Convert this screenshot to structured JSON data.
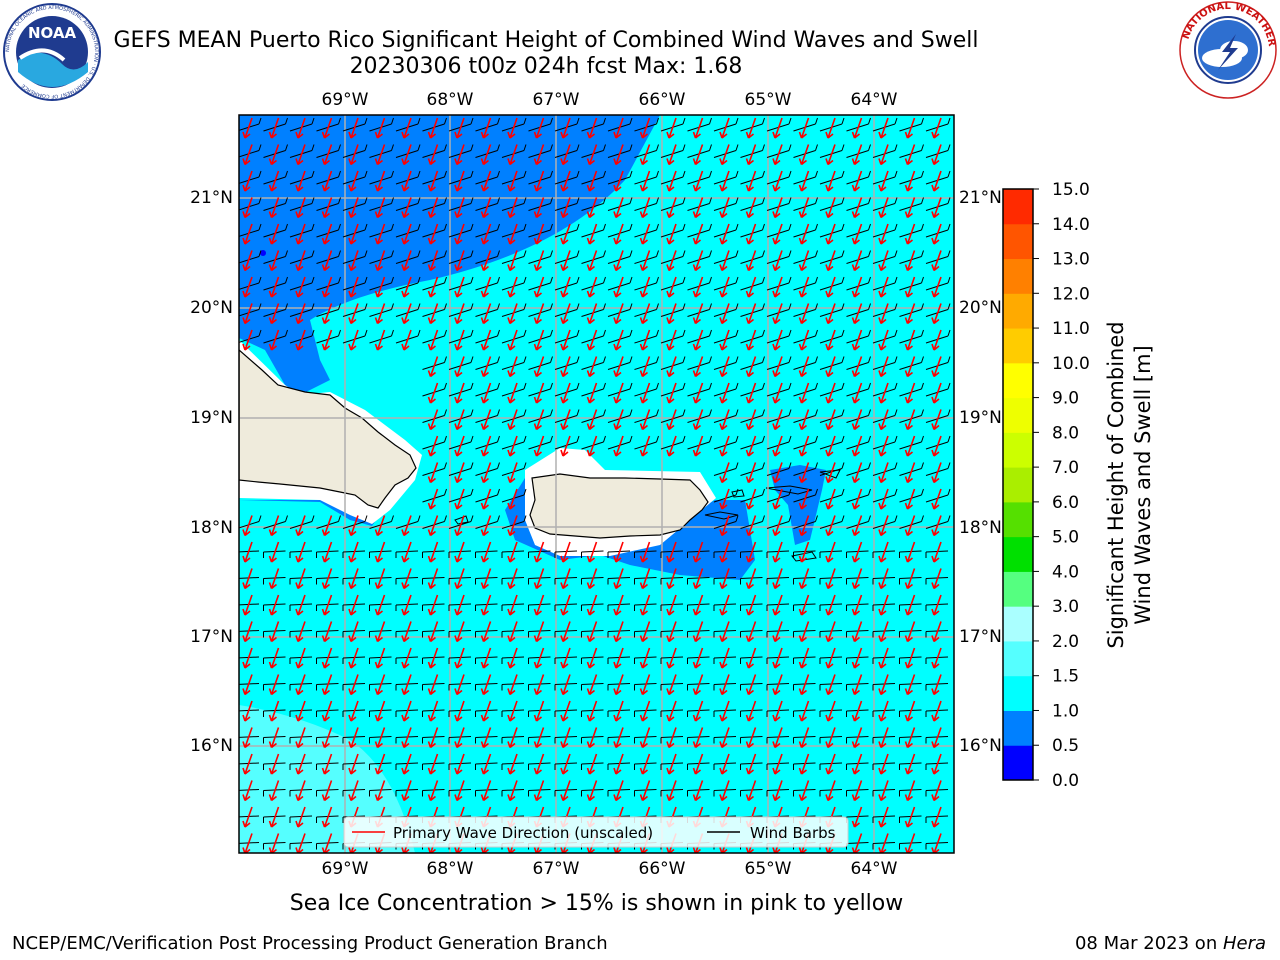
{
  "header": {
    "title_line1": "GEFS MEAN Puerto Rico Significant Height of Combined Wind Waves and Swell",
    "title_line2": "20230306 t00z 024h fcst   Max: 1.68"
  },
  "logos": {
    "noaa_text": "NOAA",
    "noaa_ring_text": "NATIONAL OCEANIC AND ATMOSPHERIC ADMINISTRATION · U.S. DEPARTMENT OF COMMERCE",
    "nws_ring_text": "NATIONAL WEATHER SERVICE"
  },
  "map": {
    "lon_labels": [
      "69°W",
      "68°W",
      "67°W",
      "66°W",
      "65°W",
      "64°W"
    ],
    "lat_labels": [
      "21°N",
      "20°N",
      "19°N",
      "18°N",
      "17°N",
      "16°N"
    ],
    "legend": {
      "wave_label": "Primary Wave Direction (unscaled)",
      "barb_label": "Wind Barbs",
      "wave_color": "#ff0000",
      "barb_color": "#000000"
    },
    "colors": {
      "ocean_high": "#00ffff",
      "ocean_low": "#0080ff",
      "ocean_min": "#0000ff",
      "swell_band": "#55ffff",
      "land": "#efebdc",
      "coast_buffer": "#ffffff"
    }
  },
  "colorbar": {
    "label_line1": "Significant Height of Combined",
    "label_line2": "Wind Waves and Swell [m]",
    "ticks": [
      "0.0",
      "0.5",
      "1.0",
      "1.5",
      "2.0",
      "3.0",
      "4.0",
      "5.0",
      "6.0",
      "7.0",
      "8.0",
      "9.0",
      "10.0",
      "11.0",
      "12.0",
      "13.0",
      "14.0",
      "15.0"
    ],
    "colors": [
      "#0000ff",
      "#0080ff",
      "#00ffff",
      "#55ffff",
      "#aaffff",
      "#55ff80",
      "#00e000",
      "#55e000",
      "#aaee00",
      "#ccff00",
      "#eeff00",
      "#ffff00",
      "#ffcc00",
      "#ffaa00",
      "#ff8000",
      "#ff5500",
      "#ff2a00"
    ]
  },
  "notes": {
    "sea_ice": "Sea Ice Concentration > 15% is shown in pink to yellow"
  },
  "footer": {
    "left": "NCEP/EMC/Verification Post Processing Product Generation Branch",
    "right_prefix": "08 Mar 2023 on ",
    "right_host": "Hera"
  }
}
